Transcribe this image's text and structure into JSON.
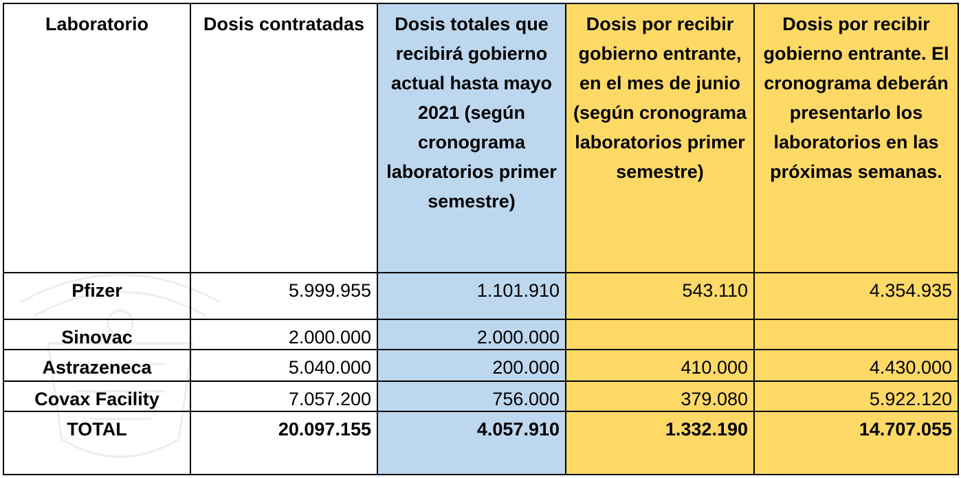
{
  "headers": {
    "lab": "Laboratorio",
    "contracted": "Dosis contratadas",
    "current_gov": "Dosis totales que recibirá gobierno actual hasta mayo 2021 (según cronograma laboratorios primer semestre)",
    "incoming_june": "Dosis por recibir gobierno entrante, en el mes de junio (según cronograma laboratorios primer semestre)",
    "incoming_later": "Dosis por recibir gobierno entrante. El cronograma deberán presentarlo los laboratorios en las próximas semanas."
  },
  "rows": [
    {
      "lab": "Pfizer",
      "contracted": "5.999.955",
      "current_gov": "1.101.910",
      "incoming_june": "543.110",
      "incoming_later": "4.354.935"
    },
    {
      "lab": "Sinovac",
      "contracted": "2.000.000",
      "current_gov": "2.000.000",
      "incoming_june": "",
      "incoming_later": ""
    },
    {
      "lab": "Astrazeneca",
      "contracted": "5.040.000",
      "current_gov": "200.000",
      "incoming_june": "410.000",
      "incoming_later": "4.430.000"
    },
    {
      "lab": "Covax Facility",
      "contracted": "7.057.200",
      "current_gov": "756.000",
      "incoming_june": "379.080",
      "incoming_later": "5.922.120"
    }
  ],
  "total": {
    "lab": "TOTAL",
    "contracted": "20.097.155",
    "current_gov": "4.057.910",
    "incoming_june": "1.332.190",
    "incoming_later": "14.707.055"
  },
  "colors": {
    "blue_column": "#bdd7ee",
    "orange_columns": "#ffd966"
  },
  "watermark_icon": "coat-of-arms-icon"
}
